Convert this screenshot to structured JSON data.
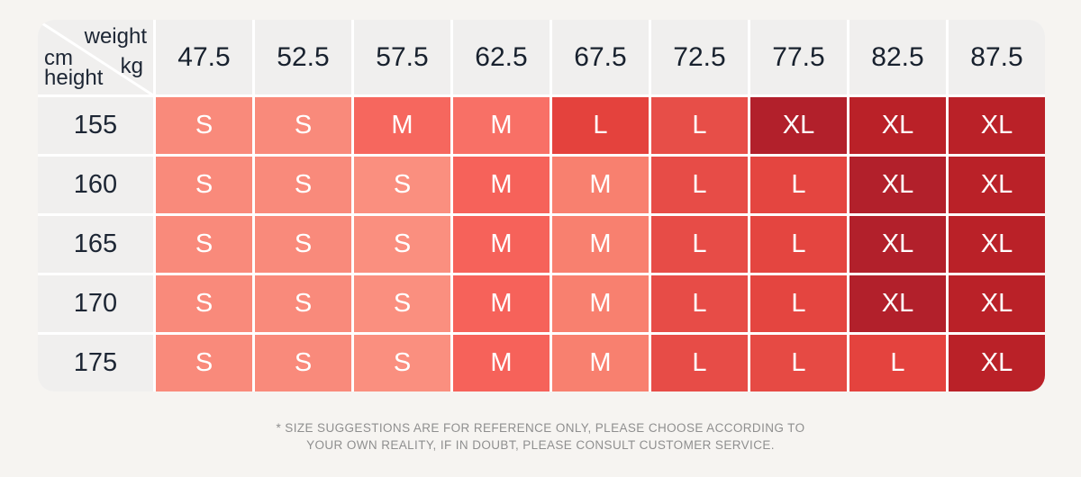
{
  "page": {
    "background": "#f6f4f1",
    "table_background": "#ffffff",
    "header_cell_background": "#f0efee",
    "dark_text_color": "#1d2634",
    "cell_text_color": "#ffffff",
    "footer_text_color": "#8f8f8f"
  },
  "corner": {
    "weight": "weight",
    "kg": "kg",
    "cm": "cm",
    "height": "height"
  },
  "footer": {
    "line1": "* SIZE SUGGESTIONS ARE FOR REFERENCE ONLY, PLEASE CHOOSE ACCORDING TO",
    "line2": "YOUR OWN REALITY, IF IN DOUBT, PLEASE CONSULT CUSTOMER SERVICE."
  },
  "chart_data": {
    "type": "table",
    "title": "Size suggestion chart (height cm vs weight kg)",
    "column_unit": "kg",
    "row_unit": "cm",
    "columns": [
      "47.5",
      "52.5",
      "57.5",
      "62.5",
      "67.5",
      "72.5",
      "77.5",
      "82.5",
      "87.5"
    ],
    "size_legend": [
      "S",
      "M",
      "L",
      "XL"
    ],
    "rows": [
      {
        "height": "155",
        "cells": [
          {
            "size": "S",
            "color": "#f98a7b"
          },
          {
            "size": "S",
            "color": "#f98a7b"
          },
          {
            "size": "M",
            "color": "#f6675e"
          },
          {
            "size": "M",
            "color": "#f87066"
          },
          {
            "size": "L",
            "color": "#e4423d"
          },
          {
            "size": "L",
            "color": "#e74e48"
          },
          {
            "size": "XL",
            "color": "#b2202b"
          },
          {
            "size": "XL",
            "color": "#ba2128"
          },
          {
            "size": "XL",
            "color": "#ba2128"
          }
        ]
      },
      {
        "height": "160",
        "cells": [
          {
            "size": "S",
            "color": "#f98a7b"
          },
          {
            "size": "S",
            "color": "#f98a7b"
          },
          {
            "size": "S",
            "color": "#fa8f7f"
          },
          {
            "size": "M",
            "color": "#f6625a"
          },
          {
            "size": "M",
            "color": "#f8806f"
          },
          {
            "size": "L",
            "color": "#e74c47"
          },
          {
            "size": "L",
            "color": "#e44540"
          },
          {
            "size": "XL",
            "color": "#b2202b"
          },
          {
            "size": "XL",
            "color": "#ba2128"
          }
        ]
      },
      {
        "height": "165",
        "cells": [
          {
            "size": "S",
            "color": "#f98a7b"
          },
          {
            "size": "S",
            "color": "#f98a7b"
          },
          {
            "size": "S",
            "color": "#fa8f7f"
          },
          {
            "size": "M",
            "color": "#f6625a"
          },
          {
            "size": "M",
            "color": "#f8806f"
          },
          {
            "size": "L",
            "color": "#e74c47"
          },
          {
            "size": "L",
            "color": "#e44540"
          },
          {
            "size": "XL",
            "color": "#b2202b"
          },
          {
            "size": "XL",
            "color": "#ba2128"
          }
        ]
      },
      {
        "height": "170",
        "cells": [
          {
            "size": "S",
            "color": "#f98a7b"
          },
          {
            "size": "S",
            "color": "#f98a7b"
          },
          {
            "size": "S",
            "color": "#fa8f7f"
          },
          {
            "size": "M",
            "color": "#f6625a"
          },
          {
            "size": "M",
            "color": "#f8806f"
          },
          {
            "size": "L",
            "color": "#e74c47"
          },
          {
            "size": "L",
            "color": "#e44540"
          },
          {
            "size": "XL",
            "color": "#b2202b"
          },
          {
            "size": "XL",
            "color": "#ba2128"
          }
        ]
      },
      {
        "height": "175",
        "cells": [
          {
            "size": "S",
            "color": "#f98a7b"
          },
          {
            "size": "S",
            "color": "#f98a7b"
          },
          {
            "size": "S",
            "color": "#fa8f7f"
          },
          {
            "size": "M",
            "color": "#f6625a"
          },
          {
            "size": "M",
            "color": "#f8806f"
          },
          {
            "size": "L",
            "color": "#e74c47"
          },
          {
            "size": "L",
            "color": "#e64a44"
          },
          {
            "size": "L",
            "color": "#e4433e"
          },
          {
            "size": "XL",
            "color": "#ba2128"
          }
        ]
      }
    ]
  }
}
